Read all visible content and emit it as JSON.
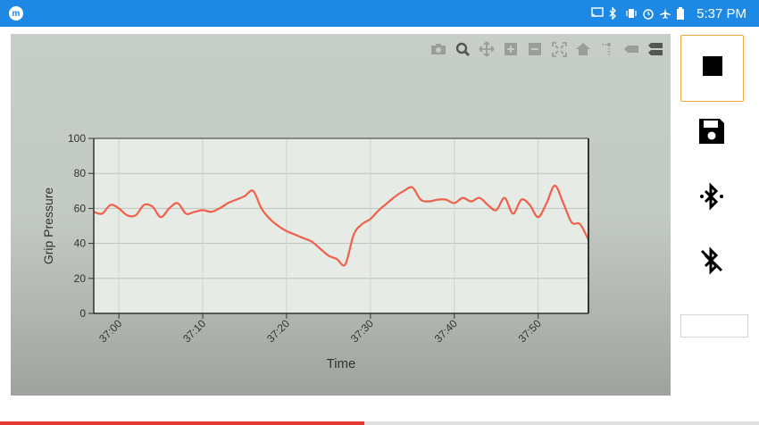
{
  "status_bar": {
    "time": "5:37 PM",
    "icons": [
      "cast-icon",
      "bluetooth-icon",
      "vibrate-icon",
      "alarm-icon",
      "airplane-icon",
      "battery-icon"
    ],
    "color": "#1e88e5"
  },
  "modebar": {
    "icons": [
      "camera-icon",
      "zoom-icon",
      "pan-icon",
      "zoom-in-icon",
      "zoom-out-icon",
      "autoscale-icon",
      "home-icon",
      "spike-lines-icon",
      "hover-closest-icon",
      "hover-compare-icon"
    ]
  },
  "controls": {
    "icons": [
      "stop-icon",
      "save-icon",
      "bluetooth-connect-icon",
      "bluetooth-disabled-icon"
    ],
    "accent": "#f2a640",
    "status_text": ""
  },
  "progress": {
    "fraction": 0.48,
    "color": "#e53935"
  },
  "chart_data": {
    "type": "line",
    "xlabel": "Time",
    "ylabel": "Grip Pressure",
    "ylim": [
      0,
      100
    ],
    "yticks": [
      0,
      20,
      40,
      60,
      80,
      100
    ],
    "xlim": [
      "36:57",
      "37:56"
    ],
    "xtick_labels": [
      "37:00",
      "37:10",
      "37:20",
      "37:30",
      "37:40",
      "37:50"
    ],
    "grid": true,
    "line_color": "#f0604a",
    "series": [
      {
        "x": [
          "36:57",
          "36:58",
          "36:59",
          "37:00",
          "37:01",
          "37:02",
          "37:03",
          "37:04",
          "37:05",
          "37:06",
          "37:07",
          "37:08",
          "37:09",
          "37:10",
          "37:11",
          "37:12",
          "37:13",
          "37:14",
          "37:15",
          "37:16",
          "37:17",
          "37:18",
          "37:19",
          "37:20",
          "37:21",
          "37:22",
          "37:23",
          "37:24",
          "37:25",
          "37:26",
          "37:27",
          "37:28",
          "37:29",
          "37:30",
          "37:31",
          "37:32",
          "37:33",
          "37:34",
          "37:35",
          "37:36",
          "37:37",
          "37:38",
          "37:39",
          "37:40",
          "37:41",
          "37:42",
          "37:43",
          "37:44",
          "37:45",
          "37:46",
          "37:47",
          "37:48",
          "37:49",
          "37:50",
          "37:51",
          "37:52",
          "37:53",
          "37:54",
          "37:55",
          "37:56"
        ],
        "y": [
          58,
          57,
          62,
          60,
          56,
          56,
          62,
          61,
          55,
          60,
          63,
          57,
          58,
          59,
          58,
          60,
          63,
          65,
          67,
          70,
          60,
          54,
          50,
          47,
          45,
          43,
          41,
          37,
          33,
          31,
          28,
          45,
          51,
          54,
          59,
          63,
          67,
          70,
          72,
          65,
          64,
          65,
          65,
          63,
          66,
          64,
          66,
          62,
          59,
          66,
          57,
          65,
          62,
          55,
          63,
          73,
          63,
          52,
          51,
          42
        ]
      }
    ]
  }
}
